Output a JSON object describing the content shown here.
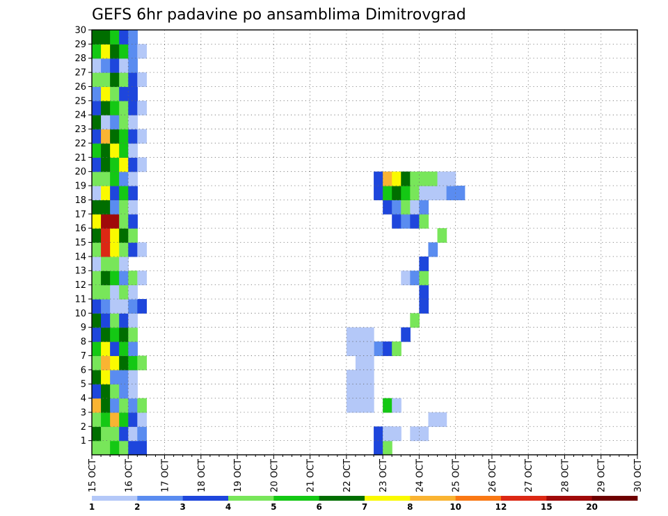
{
  "chart_data": {
    "type": "heatmap",
    "title": "GEFS 6hr padavine po ansamblima Dimitrovgrad",
    "xlabel": "",
    "ylabel": "",
    "x_ticks": [
      "15 OCT",
      "16 OCT",
      "17 OCT",
      "18 OCT",
      "19 OCT",
      "20 OCT",
      "21 OCT",
      "22 OCT",
      "23 OCT",
      "24 OCT",
      "25 OCT",
      "26 OCT",
      "27 OCT",
      "28 OCT",
      "29 OCT",
      "30 OCT"
    ],
    "y_ticks": [
      "1",
      "2",
      "3",
      "4",
      "5",
      "6",
      "7",
      "8",
      "9",
      "10",
      "11",
      "12",
      "13",
      "14",
      "15",
      "16",
      "17",
      "18",
      "19",
      "20",
      "21",
      "22",
      "23",
      "24",
      "25",
      "26",
      "27",
      "28",
      "29",
      "30"
    ],
    "x_range": [
      "15 OCT",
      "30 OCT"
    ],
    "x_step_hours": 6,
    "y_range": [
      0,
      30
    ],
    "grid": "dotted",
    "colorbar": {
      "labels": [
        "1",
        "2",
        "3",
        "4",
        "5",
        "6",
        "7",
        "8",
        "10",
        "12",
        "15",
        "20"
      ],
      "colors": [
        "#b4c8f8",
        "#5a8cf0",
        "#1e46dc",
        "#78e65a",
        "#14c814",
        "#006e00",
        "#fafa00",
        "#fab432",
        "#fa7814",
        "#dc2814",
        "#a00a0a",
        "#6e0000"
      ]
    },
    "points": [
      [
        0,
        0,
        4
      ],
      [
        1,
        0,
        4
      ],
      [
        2,
        0,
        5
      ],
      [
        3,
        0,
        4
      ],
      [
        4,
        0,
        3
      ],
      [
        5,
        0,
        3
      ],
      [
        0,
        1,
        6
      ],
      [
        1,
        1,
        4
      ],
      [
        2,
        1,
        4
      ],
      [
        3,
        1,
        3
      ],
      [
        4,
        1,
        1
      ],
      [
        5,
        1,
        2
      ],
      [
        0,
        2,
        4
      ],
      [
        1,
        2,
        5
      ],
      [
        2,
        2,
        8
      ],
      [
        3,
        2,
        5
      ],
      [
        4,
        2,
        3
      ],
      [
        5,
        2,
        1
      ],
      [
        0,
        3,
        8
      ],
      [
        1,
        3,
        6
      ],
      [
        2,
        3,
        2
      ],
      [
        3,
        3,
        4
      ],
      [
        4,
        3,
        2
      ],
      [
        5,
        3,
        4
      ],
      [
        0,
        4,
        3
      ],
      [
        1,
        4,
        6
      ],
      [
        2,
        4,
        4
      ],
      [
        3,
        4,
        2
      ],
      [
        4,
        4,
        1
      ],
      [
        0,
        5,
        6
      ],
      [
        1,
        5,
        7
      ],
      [
        2,
        5,
        2
      ],
      [
        3,
        5,
        2
      ],
      [
        4,
        5,
        1
      ],
      [
        0,
        6,
        4
      ],
      [
        1,
        6,
        8
      ],
      [
        2,
        6,
        7
      ],
      [
        3,
        6,
        6
      ],
      [
        4,
        6,
        5
      ],
      [
        5,
        6,
        4
      ],
      [
        0,
        7,
        5
      ],
      [
        1,
        7,
        7
      ],
      [
        2,
        7,
        3
      ],
      [
        3,
        7,
        5
      ],
      [
        4,
        7,
        2
      ],
      [
        0,
        8,
        3
      ],
      [
        1,
        8,
        6
      ],
      [
        2,
        8,
        5
      ],
      [
        3,
        8,
        6
      ],
      [
        4,
        8,
        4
      ],
      [
        0,
        9,
        6
      ],
      [
        1,
        9,
        3
      ],
      [
        2,
        9,
        4
      ],
      [
        3,
        9,
        3
      ],
      [
        4,
        9,
        1
      ],
      [
        0,
        10,
        3
      ],
      [
        1,
        10,
        2
      ],
      [
        2,
        10,
        1
      ],
      [
        3,
        10,
        1
      ],
      [
        4,
        10,
        2
      ],
      [
        5,
        10,
        3
      ],
      [
        0,
        11,
        4
      ],
      [
        1,
        11,
        4
      ],
      [
        2,
        11,
        1
      ],
      [
        3,
        11,
        4
      ],
      [
        4,
        11,
        1
      ],
      [
        0,
        12,
        4
      ],
      [
        1,
        12,
        6
      ],
      [
        2,
        12,
        5
      ],
      [
        3,
        12,
        2
      ],
      [
        4,
        12,
        4
      ],
      [
        5,
        12,
        1
      ],
      [
        0,
        13,
        1
      ],
      [
        1,
        13,
        4
      ],
      [
        2,
        13,
        4
      ],
      [
        3,
        13,
        1
      ],
      [
        0,
        14,
        4
      ],
      [
        1,
        14,
        10
      ],
      [
        2,
        14,
        7
      ],
      [
        3,
        14,
        4
      ],
      [
        4,
        14,
        3
      ],
      [
        5,
        14,
        1
      ],
      [
        0,
        15,
        6
      ],
      [
        1,
        15,
        10
      ],
      [
        2,
        15,
        7
      ],
      [
        3,
        15,
        6
      ],
      [
        4,
        15,
        4
      ],
      [
        0,
        16,
        7
      ],
      [
        1,
        16,
        11
      ],
      [
        2,
        16,
        11
      ],
      [
        3,
        16,
        4
      ],
      [
        4,
        16,
        3
      ],
      [
        0,
        17,
        6
      ],
      [
        1,
        17,
        6
      ],
      [
        2,
        17,
        2
      ],
      [
        3,
        17,
        4
      ],
      [
        4,
        17,
        1
      ],
      [
        0,
        18,
        1
      ],
      [
        1,
        18,
        7
      ],
      [
        2,
        18,
        3
      ],
      [
        3,
        18,
        5
      ],
      [
        4,
        18,
        3
      ],
      [
        0,
        19,
        4
      ],
      [
        1,
        19,
        4
      ],
      [
        2,
        19,
        5
      ],
      [
        3,
        19,
        2
      ],
      [
        4,
        19,
        1
      ],
      [
        0,
        20,
        3
      ],
      [
        1,
        20,
        6
      ],
      [
        2,
        20,
        5
      ],
      [
        3,
        20,
        7
      ],
      [
        4,
        20,
        3
      ],
      [
        5,
        20,
        1
      ],
      [
        0,
        21,
        5
      ],
      [
        1,
        21,
        6
      ],
      [
        2,
        21,
        7
      ],
      [
        3,
        21,
        5
      ],
      [
        4,
        21,
        1
      ],
      [
        0,
        22,
        3
      ],
      [
        1,
        22,
        8
      ],
      [
        2,
        22,
        6
      ],
      [
        3,
        22,
        5
      ],
      [
        4,
        22,
        3
      ],
      [
        5,
        22,
        1
      ],
      [
        0,
        23,
        6
      ],
      [
        1,
        23,
        1
      ],
      [
        2,
        23,
        2
      ],
      [
        3,
        23,
        4
      ],
      [
        4,
        23,
        1
      ],
      [
        0,
        24,
        3
      ],
      [
        1,
        24,
        6
      ],
      [
        2,
        24,
        5
      ],
      [
        3,
        24,
        4
      ],
      [
        4,
        24,
        3
      ],
      [
        5,
        24,
        1
      ],
      [
        0,
        25,
        2
      ],
      [
        1,
        25,
        7
      ],
      [
        2,
        25,
        4
      ],
      [
        3,
        25,
        3
      ],
      [
        4,
        25,
        3
      ],
      [
        0,
        26,
        4
      ],
      [
        1,
        26,
        4
      ],
      [
        2,
        26,
        6
      ],
      [
        3,
        26,
        4
      ],
      [
        4,
        26,
        3
      ],
      [
        5,
        26,
        1
      ],
      [
        0,
        27,
        1
      ],
      [
        1,
        27,
        2
      ],
      [
        2,
        27,
        3
      ],
      [
        3,
        27,
        1
      ],
      [
        4,
        27,
        2
      ],
      [
        0,
        28,
        5
      ],
      [
        1,
        28,
        7
      ],
      [
        2,
        28,
        6
      ],
      [
        3,
        28,
        5
      ],
      [
        4,
        28,
        2
      ],
      [
        5,
        28,
        1
      ],
      [
        0,
        29,
        6
      ],
      [
        1,
        29,
        6
      ],
      [
        2,
        29,
        5
      ],
      [
        3,
        29,
        3
      ],
      [
        4,
        29,
        2
      ],
      [
        31,
        0,
        3
      ],
      [
        32,
        0,
        4
      ],
      [
        31,
        1,
        3
      ],
      [
        32,
        1,
        2
      ],
      [
        32,
        3,
        5
      ],
      [
        33,
        3,
        1
      ],
      [
        31,
        7,
        2
      ],
      [
        32,
        7,
        3
      ],
      [
        33,
        7,
        4
      ],
      [
        34,
        8,
        3
      ],
      [
        35,
        9,
        4
      ],
      [
        36,
        10,
        3
      ],
      [
        36,
        11,
        3
      ],
      [
        34,
        12,
        1
      ],
      [
        35,
        12,
        2
      ],
      [
        36,
        12,
        4
      ],
      [
        36,
        13,
        3
      ],
      [
        37,
        14,
        2
      ],
      [
        38,
        15,
        4
      ],
      [
        33,
        16,
        3
      ],
      [
        34,
        16,
        2
      ],
      [
        35,
        16,
        3
      ],
      [
        36,
        16,
        4
      ],
      [
        32,
        17,
        3
      ],
      [
        33,
        17,
        2
      ],
      [
        34,
        17,
        4
      ],
      [
        35,
        17,
        1
      ],
      [
        36,
        17,
        2
      ],
      [
        31,
        18,
        3
      ],
      [
        32,
        18,
        5
      ],
      [
        33,
        18,
        6
      ],
      [
        34,
        18,
        5
      ],
      [
        35,
        18,
        4
      ],
      [
        36,
        18,
        1
      ],
      [
        37,
        18,
        1
      ],
      [
        38,
        18,
        1
      ],
      [
        39,
        18,
        2
      ],
      [
        40,
        18,
        2
      ],
      [
        31,
        19,
        3
      ],
      [
        32,
        19,
        8
      ],
      [
        33,
        19,
        7
      ],
      [
        34,
        19,
        6
      ],
      [
        35,
        19,
        4
      ],
      [
        36,
        19,
        4
      ],
      [
        37,
        19,
        4
      ],
      [
        38,
        19,
        1
      ],
      [
        39,
        19,
        1
      ]
    ],
    "sparse_cells": [
      [
        32,
        1
      ],
      [
        33,
        1
      ],
      [
        35,
        1
      ],
      [
        36,
        1
      ],
      [
        37,
        2
      ],
      [
        38,
        2
      ],
      [
        28,
        3
      ],
      [
        29,
        3
      ],
      [
        30,
        3
      ],
      [
        28,
        4
      ],
      [
        29,
        4
      ],
      [
        30,
        4
      ],
      [
        28,
        5
      ],
      [
        29,
        5
      ],
      [
        30,
        5
      ],
      [
        29,
        6
      ],
      [
        30,
        6
      ],
      [
        28,
        7
      ],
      [
        29,
        7
      ],
      [
        30,
        7
      ],
      [
        28,
        8
      ],
      [
        29,
        8
      ],
      [
        30,
        8
      ]
    ]
  }
}
